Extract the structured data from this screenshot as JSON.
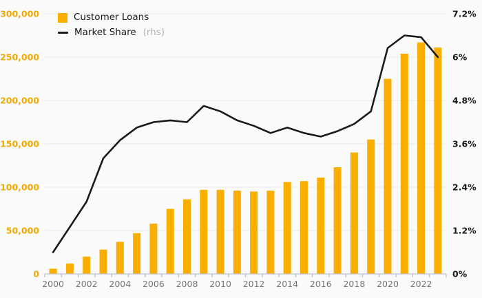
{
  "legend": {
    "customer_loans_label": "Customer Loans",
    "market_share_label": "Market Share",
    "market_share_suffix": "(rhs)"
  },
  "colors": {
    "bar": "#F9AE00",
    "line": "#1A1A1A",
    "left_axis_label": "#F2A900",
    "right_axis_label": "#1A1A1A",
    "x_axis_label": "#757575",
    "axis_line": "#B9C2D8",
    "gridline": "#E9E9EB",
    "background": "#FAFAFA"
  },
  "chart_data": {
    "type": "bar",
    "title": "",
    "xlabel": "",
    "ylabel": "",
    "legend_position": "top-left",
    "grid": true,
    "categories": [
      2000,
      2001,
      2002,
      2003,
      2004,
      2005,
      2006,
      2007,
      2008,
      2009,
      2010,
      2011,
      2012,
      2013,
      2014,
      2015,
      2016,
      2017,
      2018,
      2019,
      2020,
      2021,
      2022,
      2023
    ],
    "x_tick_labels": [
      "2000",
      "2002",
      "2004",
      "2006",
      "2008",
      "2010",
      "2012",
      "2014",
      "2016",
      "2018",
      "2020",
      "2022"
    ],
    "series": [
      {
        "name": "Customer Loans",
        "type": "bar",
        "axis": "left",
        "values": [
          6000,
          12000,
          20000,
          28000,
          37000,
          47000,
          58000,
          75000,
          86000,
          97000,
          97000,
          96000,
          95000,
          96000,
          106000,
          107000,
          111000,
          123000,
          140000,
          155000,
          225000,
          254000,
          267000,
          261000
        ]
      },
      {
        "name": "Market Share (rhs)",
        "type": "line",
        "axis": "right",
        "values": [
          0.6,
          1.3,
          2.0,
          3.2,
          3.7,
          4.05,
          4.2,
          4.25,
          4.2,
          4.65,
          4.5,
          4.25,
          4.1,
          3.9,
          4.05,
          3.9,
          3.8,
          3.95,
          4.15,
          4.5,
          6.25,
          6.6,
          6.55,
          6.0
        ]
      }
    ],
    "left_axis": {
      "range": [
        0,
        300000
      ],
      "ticks": [
        {
          "value": 0,
          "label": "0"
        },
        {
          "value": 50000,
          "label": "50,000"
        },
        {
          "value": 100000,
          "label": "100,000"
        },
        {
          "value": 150000,
          "label": "150,000"
        },
        {
          "value": 200000,
          "label": "200,000"
        },
        {
          "value": 250000,
          "label": "250,000"
        },
        {
          "value": 300000,
          "label": "300,000"
        }
      ]
    },
    "right_axis": {
      "range": [
        0,
        7.2
      ],
      "ticks": [
        {
          "value": 0,
          "label": "0%"
        },
        {
          "value": 1.2,
          "label": "1.2%"
        },
        {
          "value": 2.4,
          "label": "2.4%"
        },
        {
          "value": 3.6,
          "label": "3.6%"
        },
        {
          "value": 4.8,
          "label": "4.8%"
        },
        {
          "value": 6,
          "label": "6%"
        },
        {
          "value": 7.2,
          "label": "7.2%"
        }
      ]
    }
  }
}
